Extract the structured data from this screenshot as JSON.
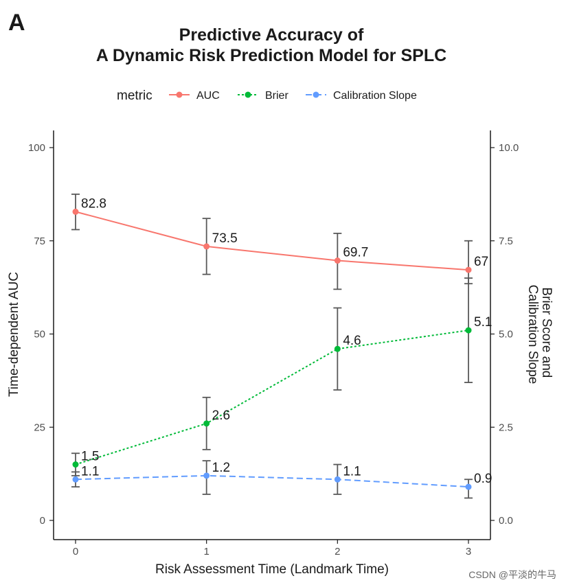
{
  "panel_label": "A",
  "watermark": "CSDN @平淡的牛马",
  "colors": {
    "AUC": "#f8766d",
    "Brier": "#00ba38",
    "Calibration Slope": "#619cff",
    "axis": "#1a1a1a",
    "errorbar": "#595959"
  },
  "chart_data": {
    "type": "line",
    "title_line1": "Predictive Accuracy of",
    "title_line2": "A Dynamic Risk Prediction Model for SPLC",
    "xlabel": "Risk Assessment Time (Landmark Time)",
    "ylabel_left": "Time-dependent AUC",
    "ylabel_right_line1": "Brier Score and",
    "ylabel_right_line2": "Calibration Slope",
    "legend_title": "metric",
    "legend_position": "top",
    "grid": false,
    "x": [
      0,
      1,
      2,
      3
    ],
    "xlim": [
      0,
      3
    ],
    "ylim_left": [
      0,
      100
    ],
    "ylim_right": [
      0,
      10
    ],
    "x_ticks": [
      "0",
      "1",
      "2",
      "3"
    ],
    "y_ticks_left": [
      "0",
      "25",
      "50",
      "75",
      "100"
    ],
    "y_ticks_right": [
      "0.0",
      "2.5",
      "5.0",
      "7.5",
      "10.0"
    ],
    "series": [
      {
        "name": "AUC",
        "axis": "left",
        "dash": "solid",
        "values": [
          82.8,
          73.5,
          69.7,
          67.2
        ],
        "labels": [
          "82.8",
          "73.5",
          "69.7",
          "67"
        ],
        "err_low": [
          78,
          66,
          62,
          63.5
        ],
        "err_high": [
          87.5,
          81,
          77,
          75
        ]
      },
      {
        "name": "Brier",
        "axis": "right",
        "dash": "dotted",
        "values": [
          1.5,
          2.6,
          4.6,
          5.1
        ],
        "labels": [
          "1.5",
          "2.6",
          "4.6",
          "5.1"
        ],
        "err_low": [
          1.2,
          1.9,
          3.5,
          3.7
        ],
        "err_high": [
          1.8,
          3.3,
          5.7,
          6.5
        ]
      },
      {
        "name": "Calibration Slope",
        "axis": "right",
        "dash": "dashed",
        "values": [
          1.1,
          1.2,
          1.1,
          0.9
        ],
        "labels": [
          "1.1",
          "1.2",
          "1.1",
          "0.9"
        ],
        "err_low": [
          0.9,
          0.7,
          0.7,
          0.6
        ],
        "err_high": [
          1.3,
          1.6,
          1.5,
          1.1
        ]
      }
    ]
  }
}
